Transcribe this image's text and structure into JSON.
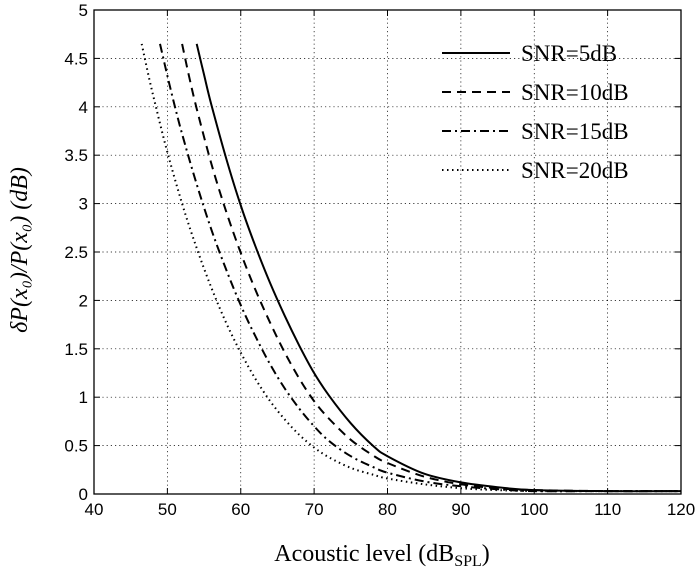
{
  "chart_data": {
    "type": "line",
    "xlabel": "Acoustic level (dB",
    "xlabel_sub": "SPL",
    "xlabel_suffix": ")",
    "ylabel": "δP(x₀)/P(x₀) (dB)",
    "xlim": [
      40,
      120
    ],
    "ylim": [
      0,
      5
    ],
    "xticks": [
      40,
      50,
      60,
      70,
      80,
      90,
      100,
      110,
      120
    ],
    "yticks": [
      0,
      0.5,
      1,
      1.5,
      2,
      2.5,
      3,
      3.5,
      4,
      4.5,
      5
    ],
    "xtick_labels": [
      "40",
      "50",
      "60",
      "70",
      "80",
      "90",
      "100",
      "110",
      "120"
    ],
    "ytick_labels": [
      "0",
      "0.5",
      "1",
      "1.5",
      "2",
      "2.5",
      "3",
      "3.5",
      "4",
      "4.5",
      "5"
    ],
    "grid": true,
    "legend_position": "top-right",
    "series": [
      {
        "name": "SNR=5dB",
        "style": "solid",
        "x": [
          54,
          55,
          56,
          58,
          60,
          62,
          64,
          66,
          68,
          70,
          72,
          75,
          78,
          80,
          85,
          90,
          95,
          100,
          110,
          120
        ],
        "y": [
          4.65,
          4.33,
          4.02,
          3.47,
          2.98,
          2.56,
          2.18,
          1.84,
          1.53,
          1.25,
          1.02,
          0.73,
          0.5,
          0.39,
          0.21,
          0.12,
          0.07,
          0.04,
          0.03,
          0.03
        ]
      },
      {
        "name": "SNR=10dB",
        "style": "dashed",
        "x": [
          52,
          53,
          54,
          56,
          58,
          60,
          62,
          64,
          66,
          68,
          70,
          72,
          75,
          78,
          80,
          85,
          90,
          95,
          100,
          110,
          120
        ],
        "y": [
          4.65,
          4.3,
          3.98,
          3.41,
          2.92,
          2.49,
          2.11,
          1.77,
          1.46,
          1.19,
          0.96,
          0.78,
          0.56,
          0.4,
          0.32,
          0.18,
          0.1,
          0.06,
          0.04,
          0.03,
          0.03
        ]
      },
      {
        "name": "SNR=15dB",
        "style": "dashdot",
        "x": [
          49,
          50,
          51,
          52,
          54,
          56,
          58,
          60,
          62,
          64,
          66,
          68,
          70,
          72,
          75,
          78,
          80,
          85,
          90,
          95,
          100,
          110,
          120
        ],
        "y": [
          4.65,
          4.32,
          4.01,
          3.72,
          3.2,
          2.73,
          2.32,
          1.95,
          1.63,
          1.34,
          1.09,
          0.88,
          0.7,
          0.55,
          0.39,
          0.28,
          0.22,
          0.13,
          0.08,
          0.05,
          0.03,
          0.03,
          0.03
        ]
      },
      {
        "name": "SNR=20dB",
        "style": "dotted",
        "x": [
          46.5,
          47.5,
          48.5,
          50,
          52,
          54,
          56,
          58,
          60,
          62,
          64,
          66,
          68,
          70,
          72,
          75,
          78,
          80,
          85,
          90,
          95,
          100,
          110,
          120
        ],
        "y": [
          4.65,
          4.3,
          3.98,
          3.53,
          3.0,
          2.54,
          2.13,
          1.77,
          1.46,
          1.19,
          0.96,
          0.77,
          0.61,
          0.48,
          0.38,
          0.27,
          0.2,
          0.16,
          0.1,
          0.06,
          0.04,
          0.03,
          0.03,
          0.03
        ]
      }
    ]
  }
}
